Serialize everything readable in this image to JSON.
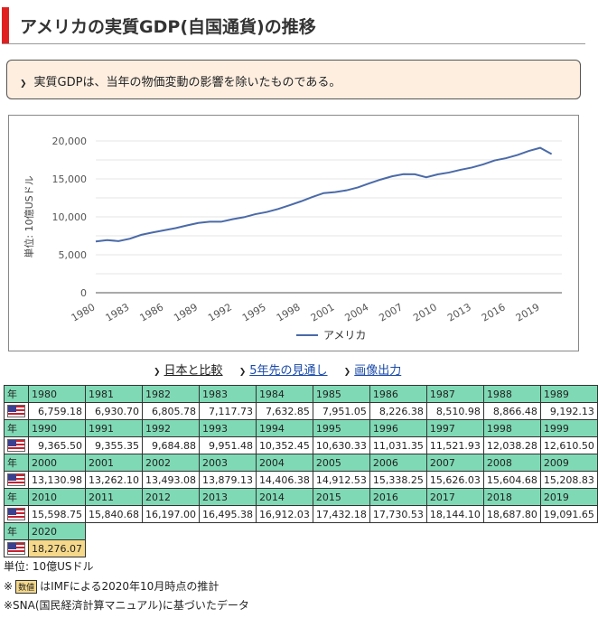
{
  "page": {
    "title": "アメリカの実質GDP(自国通貨)の推移",
    "note": "実質GDPは、当年の物価変動の影響を除いたものである。"
  },
  "links": {
    "compare": "日本と比較",
    "forecast": "5年先の見通し",
    "image": "画像出力"
  },
  "chart_data": {
    "type": "line",
    "ylabel": "単位: 10億USドル",
    "ylim": [
      0,
      20000
    ],
    "yticks": [
      "0",
      "5,000",
      "10,000",
      "15,000",
      "20,000"
    ],
    "xticks": [
      "1980",
      "1983",
      "1986",
      "1989",
      "1992",
      "1995",
      "1998",
      "2001",
      "2004",
      "2007",
      "2010",
      "2013",
      "2016",
      "2019"
    ],
    "grid": true,
    "legend": "bottom",
    "series": [
      {
        "name": "アメリカ",
        "color": "#4a6aa8",
        "x": [
          1980,
          1981,
          1982,
          1983,
          1984,
          1985,
          1986,
          1987,
          1988,
          1989,
          1990,
          1991,
          1992,
          1993,
          1994,
          1995,
          1996,
          1997,
          1998,
          1999,
          2000,
          2001,
          2002,
          2003,
          2004,
          2005,
          2006,
          2007,
          2008,
          2009,
          2010,
          2011,
          2012,
          2013,
          2014,
          2015,
          2016,
          2017,
          2018,
          2019,
          2020
        ],
        "values": [
          6759.18,
          6930.7,
          6805.78,
          7117.73,
          7632.85,
          7951.05,
          8226.38,
          8510.98,
          8866.48,
          9192.13,
          9365.5,
          9355.35,
          9684.88,
          9951.48,
          10352.45,
          10630.33,
          11031.35,
          11521.93,
          12038.28,
          12610.5,
          13130.98,
          13262.1,
          13493.08,
          13879.13,
          14406.38,
          14912.53,
          15338.25,
          15626.03,
          15604.68,
          15208.83,
          15598.75,
          15840.68,
          16197.0,
          16495.38,
          16912.03,
          17432.18,
          17730.53,
          18144.1,
          18687.8,
          19091.65,
          18276.07
        ]
      }
    ]
  },
  "table": {
    "header_label": "年",
    "rows": [
      {
        "years": [
          "1980",
          "1981",
          "1982",
          "1983",
          "1984",
          "1985",
          "1986",
          "1987",
          "1988",
          "1989"
        ],
        "values": [
          "6,759.18",
          "6,930.70",
          "6,805.78",
          "7,117.73",
          "7,632.85",
          "7,951.05",
          "8,226.38",
          "8,510.98",
          "8,866.48",
          "9,192.13"
        ]
      },
      {
        "years": [
          "1990",
          "1991",
          "1992",
          "1993",
          "1994",
          "1995",
          "1996",
          "1997",
          "1998",
          "1999"
        ],
        "values": [
          "9,365.50",
          "9,355.35",
          "9,684.88",
          "9,951.48",
          "10,352.45",
          "10,630.33",
          "11,031.35",
          "11,521.93",
          "12,038.28",
          "12,610.50"
        ]
      },
      {
        "years": [
          "2000",
          "2001",
          "2002",
          "2003",
          "2004",
          "2005",
          "2006",
          "2007",
          "2008",
          "2009"
        ],
        "values": [
          "13,130.98",
          "13,262.10",
          "13,493.08",
          "13,879.13",
          "14,406.38",
          "14,912.53",
          "15,338.25",
          "15,626.03",
          "15,604.68",
          "15,208.83"
        ]
      },
      {
        "years": [
          "2010",
          "2011",
          "2012",
          "2013",
          "2014",
          "2015",
          "2016",
          "2017",
          "2018",
          "2019"
        ],
        "values": [
          "15,598.75",
          "15,840.68",
          "16,197.00",
          "16,495.38",
          "16,912.03",
          "17,432.18",
          "17,730.53",
          "18,144.10",
          "18,687.80",
          "19,091.65"
        ]
      },
      {
        "years": [
          "2020"
        ],
        "values": [
          "18,276.07"
        ],
        "estimate": [
          true
        ]
      }
    ]
  },
  "footer": {
    "unit": "単位: 10億USドル",
    "estimate_prefix": "※",
    "estimate_badge": "数値",
    "estimate_note": "はIMFによる2020年10月時点の推計",
    "sna_note": "※SNA(国民経済計算マニュアル)に基づいたデータ"
  },
  "colors": {
    "accent": "#e02020",
    "table_header": "#7fd9b5",
    "estimate": "#f5d88a",
    "line": "#4a6aa8"
  }
}
